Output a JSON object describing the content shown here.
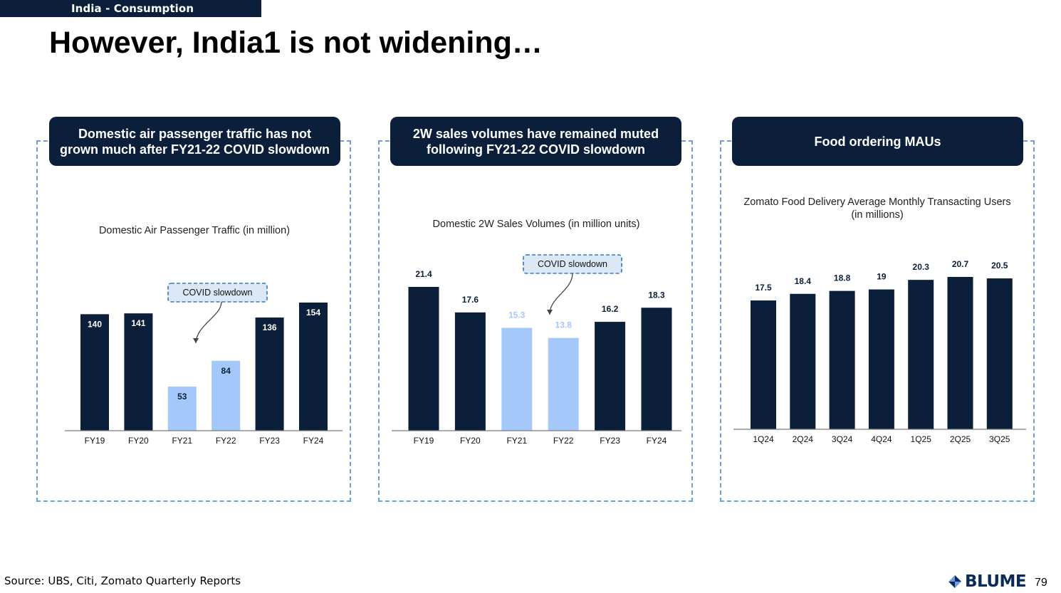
{
  "section_tag": "India - Consumption",
  "title": "However, India1 is not widening…",
  "panels": [
    {
      "header": "Domestic air passenger traffic has not grown much after FY21-22 COVID slowdown"
    },
    {
      "header": "2W sales volumes have remained muted following FY21-22 COVID slowdown"
    },
    {
      "header": "Food ordering MAUs"
    }
  ],
  "chart_data": [
    {
      "type": "bar",
      "title": "Domestic Air Passenger Traffic (in million)",
      "categories": [
        "FY19",
        "FY20",
        "FY21",
        "FY22",
        "FY23",
        "FY24"
      ],
      "values": [
        140,
        141,
        53,
        84,
        136,
        154
      ],
      "value_labels": [
        "140",
        "141",
        "53",
        "84",
        "136",
        "154"
      ],
      "highlight": [
        false,
        false,
        true,
        true,
        false,
        false
      ],
      "annotation": "COVID slowdown",
      "ylim": [
        0,
        160
      ],
      "colors": {
        "normal": "#0b1f3a",
        "highlight": "#a4c8fa"
      }
    },
    {
      "type": "bar",
      "title": "Domestic 2W Sales Volumes (in million units)",
      "categories": [
        "FY19",
        "FY20",
        "FY21",
        "FY22",
        "FY23",
        "FY24"
      ],
      "values": [
        21.4,
        17.6,
        15.3,
        13.8,
        16.2,
        18.3
      ],
      "value_labels": [
        "21.4",
        "17.6",
        "15.3",
        "13.8",
        "16.2",
        "18.3"
      ],
      "highlight": [
        false,
        false,
        true,
        true,
        false,
        false
      ],
      "annotation": "COVID slowdown",
      "ylim": [
        0,
        22
      ],
      "colors": {
        "normal": "#0b1f3a",
        "highlight": "#a4c8fa"
      }
    },
    {
      "type": "bar",
      "title": "Zomato Food Delivery Average Monthly Transacting Users (in millions)",
      "categories": [
        "1Q24",
        "2Q24",
        "3Q24",
        "4Q24",
        "1Q25",
        "2Q25",
        "3Q25"
      ],
      "values": [
        17.5,
        18.4,
        18.8,
        19,
        20.3,
        20.7,
        20.5
      ],
      "value_labels": [
        "17.5",
        "18.4",
        "18.8",
        "19",
        "20.3",
        "20.7",
        "20.5"
      ],
      "highlight": [
        false,
        false,
        false,
        false,
        false,
        false,
        false
      ],
      "ylim": [
        0,
        22
      ],
      "colors": {
        "normal": "#0b1f3a",
        "highlight": "#a4c8fa"
      }
    }
  ],
  "source": "Source: UBS, Citi, Zomato Quarterly Reports",
  "logo_text": "BLUME",
  "page_number": "79"
}
